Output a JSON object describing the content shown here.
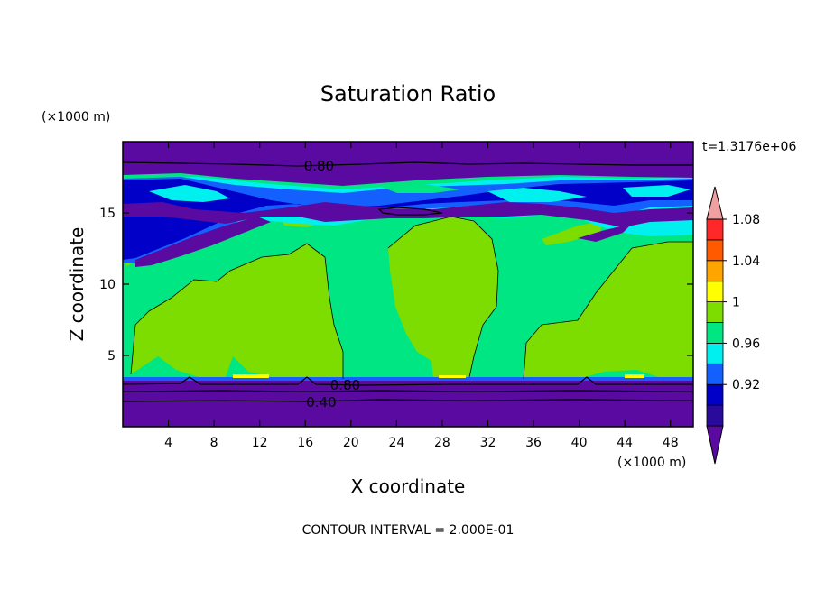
{
  "chart_data": {
    "type": "heatmap",
    "title": "Saturation Ratio",
    "xlabel": "X coordinate",
    "ylabel": "Z coordinate",
    "x_unit": "(×1000 m)",
    "y_unit": "(×1000 m)",
    "time_label": "t=1.3176e+06",
    "footer": "CONTOUR INTERVAL = 2.000E-01",
    "xlim": [
      0,
      50
    ],
    "ylim": [
      0,
      20
    ],
    "x_ticks": [
      4,
      8,
      12,
      16,
      20,
      24,
      28,
      32,
      36,
      40,
      44,
      48
    ],
    "y_ticks": [
      5,
      10,
      15
    ],
    "contour_labels": [
      {
        "text": "0.80",
        "x": 17.2,
        "y": 18.3
      },
      {
        "text": "0.80",
        "x": 19.5,
        "y": 2.9
      },
      {
        "text": "0.40",
        "x": 17.4,
        "y": 1.7
      }
    ],
    "colorbar": {
      "levels": [
        "0.92",
        "0.96",
        "1",
        "1.04",
        "1.08"
      ],
      "colors": [
        "#5a0aa0",
        "#2a0a9a",
        "#0000c8",
        "#1460ff",
        "#00f0f0",
        "#00e682",
        "#7ddc00",
        "#ffff00",
        "#ffa500",
        "#ff5a00",
        "#ff2828",
        "#f0a0a0"
      ]
    }
  }
}
